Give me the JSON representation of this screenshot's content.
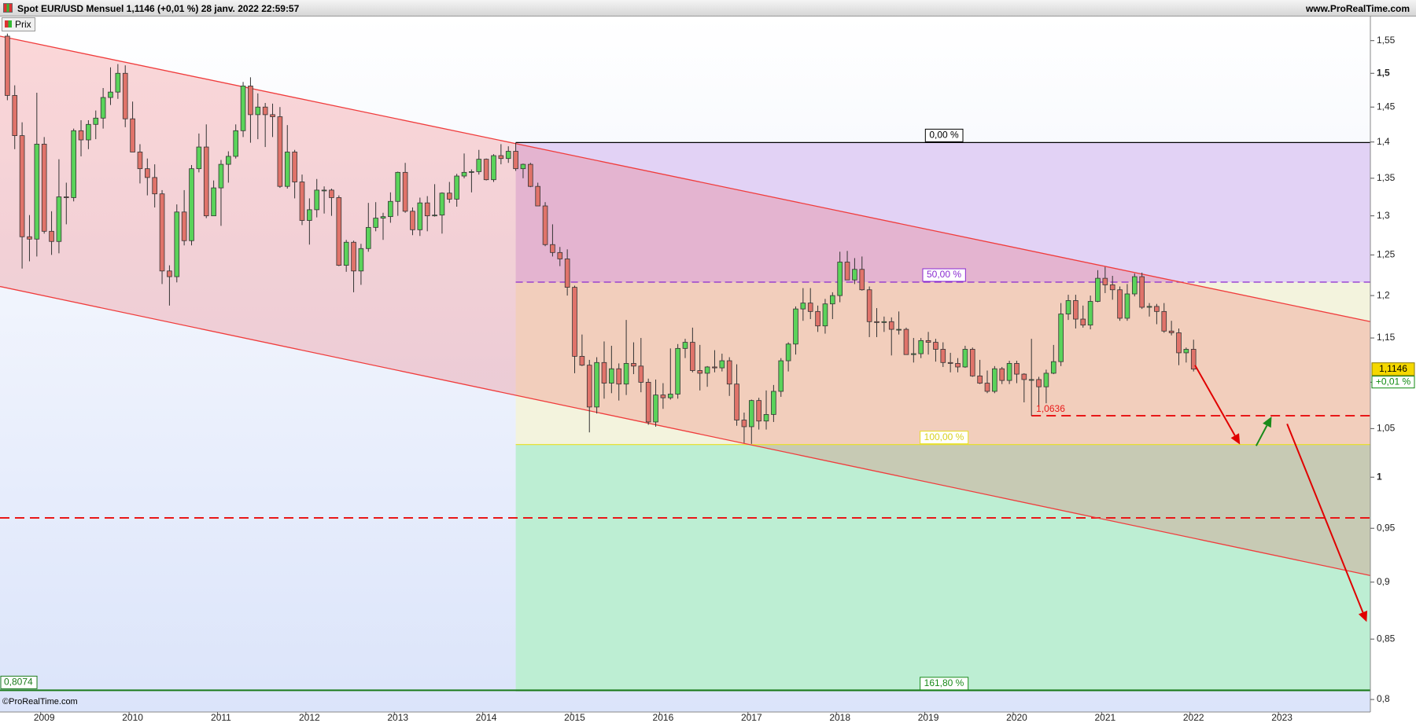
{
  "chart_data": {
    "type": "candlestick",
    "title": "Spot EUR/USD Mensuel 1,1146 (+0,01 %) 28 janv. 2022 22:59:57",
    "source": "www.ProRealTime.com",
    "copyright": "©ProRealTime.com",
    "legend": "Prix",
    "log": true,
    "up_color": "#5ad35a",
    "down_color": "#e0736a",
    "xlim": [
      -1,
      185
    ],
    "xticks": [
      {
        "value": 5,
        "label": "2009"
      },
      {
        "value": 17,
        "label": "2010"
      },
      {
        "value": 29,
        "label": "2011"
      },
      {
        "value": 41,
        "label": "2012"
      },
      {
        "value": 53,
        "label": "2013"
      },
      {
        "value": 65,
        "label": "2014"
      },
      {
        "value": 77,
        "label": "2015"
      },
      {
        "value": 89,
        "label": "2016"
      },
      {
        "value": 101,
        "label": "2017"
      },
      {
        "value": 113,
        "label": "2018"
      },
      {
        "value": 125,
        "label": "2019"
      },
      {
        "value": 137,
        "label": "2020"
      },
      {
        "value": 149,
        "label": "2021"
      },
      {
        "value": 161,
        "label": "2022"
      },
      {
        "value": 173,
        "label": "2023"
      }
    ],
    "ylim": [
      0.79,
      1.588
    ],
    "yticks": [
      {
        "value": 0.8,
        "label": "0,8"
      },
      {
        "value": 0.85,
        "label": "0,85"
      },
      {
        "value": 0.9,
        "label": "0,9"
      },
      {
        "value": 0.95,
        "label": "0,95"
      },
      1,
      {
        "value": 1.05,
        "label": "1,05"
      },
      {
        "value": 1.1,
        "label": "1,1"
      },
      {
        "value": 1.15,
        "label": "1,15"
      },
      {
        "value": 1.2,
        "label": "1,2"
      },
      {
        "value": 1.25,
        "label": "1,25"
      },
      {
        "value": 1.3,
        "label": "1,3"
      },
      {
        "value": 1.35,
        "label": "1,35"
      },
      {
        "value": 1.4,
        "label": "1,4"
      },
      {
        "value": 1.45,
        "label": "1,45"
      },
      {
        "value": 1.5,
        "label": "1,5"
      },
      {
        "value": 1.55,
        "label": "1,55"
      }
    ],
    "ohlc": [
      [
        1.557,
        1.561,
        1.46,
        1.467
      ],
      [
        1.467,
        1.482,
        1.39,
        1.409
      ],
      [
        1.409,
        1.428,
        1.233,
        1.273
      ],
      [
        1.273,
        1.301,
        1.242,
        1.27
      ],
      [
        1.27,
        1.471,
        1.248,
        1.397
      ],
      [
        1.397,
        1.407,
        1.277,
        1.28
      ],
      [
        1.28,
        1.306,
        1.25,
        1.267
      ],
      [
        1.267,
        1.376,
        1.252,
        1.325
      ],
      [
        1.325,
        1.344,
        1.289,
        1.324
      ],
      [
        1.324,
        1.419,
        1.319,
        1.416
      ],
      [
        1.416,
        1.431,
        1.38,
        1.403
      ],
      [
        1.403,
        1.431,
        1.39,
        1.425
      ],
      [
        1.425,
        1.445,
        1.404,
        1.434
      ],
      [
        1.434,
        1.478,
        1.419,
        1.464
      ],
      [
        1.464,
        1.509,
        1.453,
        1.472
      ],
      [
        1.472,
        1.514,
        1.462,
        1.5
      ],
      [
        1.5,
        1.512,
        1.421,
        1.433
      ],
      [
        1.433,
        1.458,
        1.386,
        1.386
      ],
      [
        1.386,
        1.397,
        1.343,
        1.363
      ],
      [
        1.363,
        1.377,
        1.327,
        1.351
      ],
      [
        1.351,
        1.369,
        1.311,
        1.329
      ],
      [
        1.329,
        1.334,
        1.214,
        1.23
      ],
      [
        1.23,
        1.237,
        1.188,
        1.223
      ],
      [
        1.223,
        1.315,
        1.216,
        1.305
      ],
      [
        1.305,
        1.334,
        1.262,
        1.268
      ],
      [
        1.268,
        1.368,
        1.262,
        1.363
      ],
      [
        1.363,
        1.412,
        1.358,
        1.393
      ],
      [
        1.393,
        1.425,
        1.297,
        1.3
      ],
      [
        1.3,
        1.347,
        1.3,
        1.337
      ],
      [
        1.337,
        1.375,
        1.287,
        1.369
      ],
      [
        1.369,
        1.387,
        1.344,
        1.38
      ],
      [
        1.38,
        1.425,
        1.377,
        1.416
      ],
      [
        1.416,
        1.487,
        1.407,
        1.481
      ],
      [
        1.481,
        1.494,
        1.399,
        1.439
      ],
      [
        1.439,
        1.47,
        1.404,
        1.45
      ],
      [
        1.45,
        1.456,
        1.393,
        1.439
      ],
      [
        1.439,
        1.455,
        1.407,
        1.436
      ],
      [
        1.436,
        1.45,
        1.337,
        1.339
      ],
      [
        1.339,
        1.424,
        1.336,
        1.386
      ],
      [
        1.386,
        1.389,
        1.323,
        1.345
      ],
      [
        1.345,
        1.355,
        1.288,
        1.294
      ],
      [
        1.294,
        1.323,
        1.263,
        1.308
      ],
      [
        1.308,
        1.349,
        1.298,
        1.334
      ],
      [
        1.334,
        1.339,
        1.303,
        1.334
      ],
      [
        1.334,
        1.336,
        1.3,
        1.324
      ],
      [
        1.324,
        1.327,
        1.236,
        1.237
      ],
      [
        1.237,
        1.269,
        1.229,
        1.266
      ],
      [
        1.266,
        1.268,
        1.204,
        1.23
      ],
      [
        1.23,
        1.264,
        1.213,
        1.258
      ],
      [
        1.258,
        1.317,
        1.254,
        1.285
      ],
      [
        1.285,
        1.318,
        1.28,
        1.297
      ],
      [
        1.297,
        1.304,
        1.269,
        1.299
      ],
      [
        1.299,
        1.331,
        1.291,
        1.319
      ],
      [
        1.319,
        1.359,
        1.3,
        1.358
      ],
      [
        1.358,
        1.371,
        1.304,
        1.306
      ],
      [
        1.306,
        1.311,
        1.275,
        1.282
      ],
      [
        1.282,
        1.324,
        1.274,
        1.317
      ],
      [
        1.317,
        1.326,
        1.28,
        1.3
      ],
      [
        1.3,
        1.342,
        1.299,
        1.301
      ],
      [
        1.301,
        1.331,
        1.277,
        1.33
      ],
      [
        1.33,
        1.345,
        1.317,
        1.322
      ],
      [
        1.322,
        1.356,
        1.312,
        1.353
      ],
      [
        1.353,
        1.384,
        1.35,
        1.358
      ],
      [
        1.358,
        1.362,
        1.331,
        1.359
      ],
      [
        1.359,
        1.389,
        1.355,
        1.376
      ],
      [
        1.376,
        1.377,
        1.347,
        1.348
      ],
      [
        1.348,
        1.383,
        1.345,
        1.381
      ],
      [
        1.381,
        1.397,
        1.369,
        1.377
      ],
      [
        1.377,
        1.394,
        1.371,
        1.387
      ],
      [
        1.387,
        1.3993,
        1.36,
        1.363
      ],
      [
        1.363,
        1.37,
        1.35,
        1.369
      ],
      [
        1.369,
        1.371,
        1.338,
        1.339
      ],
      [
        1.339,
        1.344,
        1.313,
        1.313
      ],
      [
        1.313,
        1.318,
        1.261,
        1.263
      ],
      [
        1.263,
        1.289,
        1.248,
        1.253
      ],
      [
        1.253,
        1.26,
        1.236,
        1.245
      ],
      [
        1.245,
        1.257,
        1.2,
        1.21
      ],
      [
        1.21,
        1.212,
        1.11,
        1.129
      ],
      [
        1.129,
        1.154,
        1.118,
        1.119
      ],
      [
        1.119,
        1.125,
        1.046,
        1.073
      ],
      [
        1.073,
        1.128,
        1.066,
        1.122
      ],
      [
        1.122,
        1.146,
        1.082,
        1.099
      ],
      [
        1.099,
        1.141,
        1.088,
        1.115
      ],
      [
        1.115,
        1.121,
        1.08,
        1.098
      ],
      [
        1.098,
        1.171,
        1.086,
        1.121
      ],
      [
        1.121,
        1.145,
        1.109,
        1.118
      ],
      [
        1.118,
        1.15,
        1.089,
        1.1
      ],
      [
        1.1,
        1.104,
        1.054,
        1.057
      ],
      [
        1.057,
        1.103,
        1.052,
        1.086
      ],
      [
        1.086,
        1.099,
        1.071,
        1.083
      ],
      [
        1.083,
        1.138,
        1.081,
        1.087
      ],
      [
        1.087,
        1.143,
        1.082,
        1.138
      ],
      [
        1.138,
        1.149,
        1.127,
        1.145
      ],
      [
        1.145,
        1.162,
        1.111,
        1.113
      ],
      [
        1.113,
        1.142,
        1.091,
        1.11
      ],
      [
        1.11,
        1.118,
        1.095,
        1.117
      ],
      [
        1.117,
        1.136,
        1.111,
        1.116
      ],
      [
        1.116,
        1.132,
        1.112,
        1.124
      ],
      [
        1.124,
        1.128,
        1.085,
        1.098
      ],
      [
        1.098,
        1.12,
        1.053,
        1.059
      ],
      [
        1.059,
        1.067,
        1.035,
        1.052
      ],
      [
        1.052,
        1.081,
        1.034,
        1.08
      ],
      [
        1.08,
        1.083,
        1.049,
        1.058
      ],
      [
        1.058,
        1.091,
        1.049,
        1.065
      ],
      [
        1.065,
        1.097,
        1.057,
        1.09
      ],
      [
        1.09,
        1.127,
        1.084,
        1.124
      ],
      [
        1.124,
        1.145,
        1.112,
        1.143
      ],
      [
        1.143,
        1.187,
        1.131,
        1.184
      ],
      [
        1.184,
        1.209,
        1.17,
        1.191
      ],
      [
        1.191,
        1.209,
        1.172,
        1.181
      ],
      [
        1.181,
        1.188,
        1.157,
        1.164
      ],
      [
        1.164,
        1.196,
        1.155,
        1.19
      ],
      [
        1.19,
        1.204,
        1.172,
        1.2
      ],
      [
        1.2,
        1.254,
        1.192,
        1.241
      ],
      [
        1.241,
        1.255,
        1.219,
        1.219
      ],
      [
        1.219,
        1.246,
        1.214,
        1.232
      ],
      [
        1.232,
        1.248,
        1.206,
        1.207
      ],
      [
        1.207,
        1.211,
        1.151,
        1.169
      ],
      [
        1.169,
        1.185,
        1.151,
        1.168
      ],
      [
        1.168,
        1.175,
        1.157,
        1.169
      ],
      [
        1.169,
        1.174,
        1.13,
        1.16
      ],
      [
        1.16,
        1.181,
        1.154,
        1.16
      ],
      [
        1.16,
        1.162,
        1.131,
        1.131
      ],
      [
        1.131,
        1.15,
        1.122,
        1.132
      ],
      [
        1.132,
        1.15,
        1.127,
        1.147
      ],
      [
        1.147,
        1.157,
        1.131,
        1.145
      ],
      [
        1.145,
        1.149,
        1.123,
        1.137
      ],
      [
        1.137,
        1.145,
        1.117,
        1.122
      ],
      [
        1.122,
        1.133,
        1.111,
        1.121
      ],
      [
        1.121,
        1.127,
        1.111,
        1.117
      ],
      [
        1.117,
        1.141,
        1.116,
        1.137
      ],
      [
        1.137,
        1.139,
        1.106,
        1.107
      ],
      [
        1.107,
        1.125,
        1.098,
        1.099
      ],
      [
        1.099,
        1.113,
        1.088,
        1.09
      ],
      [
        1.09,
        1.118,
        1.088,
        1.115
      ],
      [
        1.115,
        1.117,
        1.098,
        1.102
      ],
      [
        1.102,
        1.124,
        1.098,
        1.121
      ],
      [
        1.121,
        1.124,
        1.099,
        1.109
      ],
      [
        1.109,
        1.11,
        1.078,
        1.103
      ],
      [
        1.103,
        1.149,
        1.0636,
        1.103
      ],
      [
        1.103,
        1.106,
        1.073,
        1.095
      ],
      [
        1.095,
        1.114,
        1.077,
        1.11
      ],
      [
        1.11,
        1.142,
        1.109,
        1.123
      ],
      [
        1.123,
        1.191,
        1.118,
        1.178
      ],
      [
        1.178,
        1.201,
        1.171,
        1.194
      ],
      [
        1.194,
        1.201,
        1.161,
        1.172
      ],
      [
        1.172,
        1.188,
        1.162,
        1.165
      ],
      [
        1.165,
        1.2,
        1.16,
        1.193
      ],
      [
        1.193,
        1.231,
        1.192,
        1.221
      ],
      [
        1.221,
        1.235,
        1.203,
        1.213
      ],
      [
        1.213,
        1.224,
        1.195,
        1.207
      ],
      [
        1.207,
        1.211,
        1.17,
        1.173
      ],
      [
        1.173,
        1.214,
        1.17,
        1.202
      ],
      [
        1.202,
        1.227,
        1.199,
        1.223
      ],
      [
        1.223,
        1.228,
        1.184,
        1.186
      ],
      [
        1.186,
        1.191,
        1.175,
        1.187
      ],
      [
        1.187,
        1.19,
        1.166,
        1.181
      ],
      [
        1.181,
        1.191,
        1.156,
        1.158
      ],
      [
        1.158,
        1.17,
        1.153,
        1.156
      ],
      [
        1.156,
        1.161,
        1.119,
        1.133
      ],
      [
        1.133,
        1.139,
        1.122,
        1.137
      ],
      [
        1.137,
        1.148,
        1.112,
        1.1146
      ]
    ],
    "fib": {
      "start": 69,
      "high": 1.3993,
      "low": 1.0333,
      "levels": [
        {
          "value": 0,
          "label": "0,00 %",
          "color": "#000000",
          "zone": "#e2d2f5"
        },
        {
          "value": 50,
          "label": "50,00 %",
          "color": "#8a2ad0",
          "zone": "#f3f3dd"
        },
        {
          "value": 100,
          "label": "100,00 %",
          "color": "#e8e020",
          "zone": "#bdeed3"
        },
        {
          "value": 161.8,
          "label": "161,80 %",
          "color": "#1a8a1a"
        }
      ]
    },
    "fib_low_label": {
      "value": 0.8074,
      "label": "0,8074",
      "color": "#1a7a1a"
    },
    "channel": {
      "color": "#f03c3c",
      "upper": [
        [
          -1,
          1.557
        ],
        [
          185,
          1.169
        ]
      ],
      "lower": [
        [
          -1,
          1.211
        ],
        [
          185,
          0.906
        ]
      ]
    },
    "hlines": [
      {
        "value": 0.96,
        "start": -1,
        "color": "#e81818"
      },
      {
        "value": 1.0636,
        "label": "1,0636",
        "start": 139,
        "color": "#e81818"
      }
    ],
    "arrows": [
      {
        "from": [
          161.2,
          1.119
        ],
        "to": [
          167.3,
          1.0334
        ],
        "color": "#e00000"
      },
      {
        "from": [
          169.5,
          1.032
        ],
        "to": [
          171.6,
          1.0628
        ],
        "color": "#1a8a1a"
      },
      {
        "from": [
          173.7,
          1.055
        ],
        "to": [
          184.5,
          0.8648
        ],
        "color": "#e00000"
      }
    ],
    "last_price": {
      "value": 1.1146,
      "label": "1,1146"
    },
    "change": {
      "value": 0.01,
      "label": "+0,01 %"
    }
  }
}
